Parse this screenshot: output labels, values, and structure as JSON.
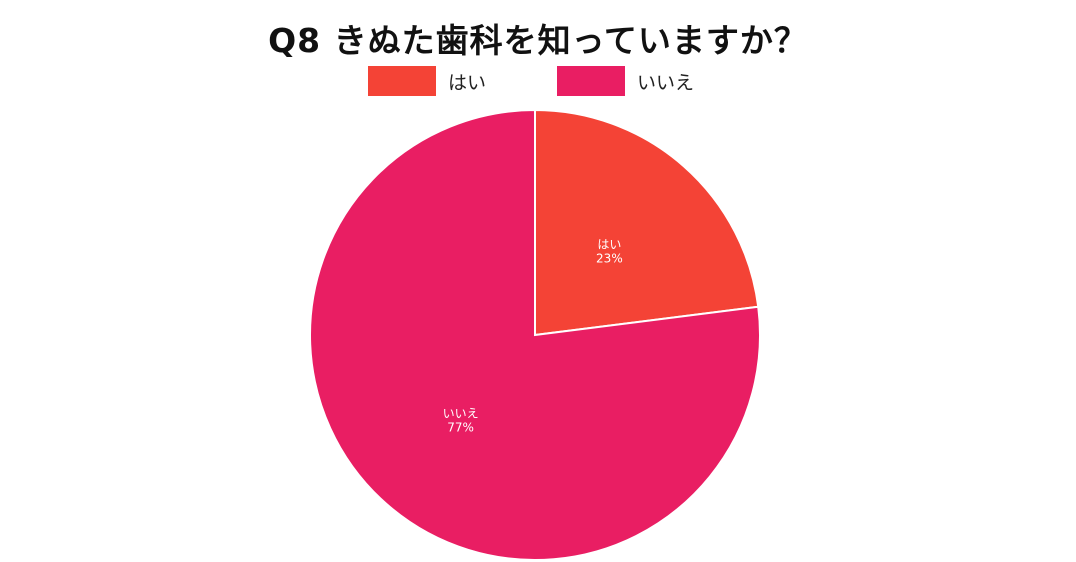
{
  "chart_data": {
    "type": "pie",
    "title": "Q8 きぬた歯科を知っていますか？",
    "categories": [
      "はい",
      "いいえ"
    ],
    "values": [
      23,
      77
    ],
    "percent_labels": [
      "23%",
      "77%"
    ],
    "colors": [
      "#f44336",
      "#e91e63"
    ],
    "legend_position": "top-center"
  }
}
